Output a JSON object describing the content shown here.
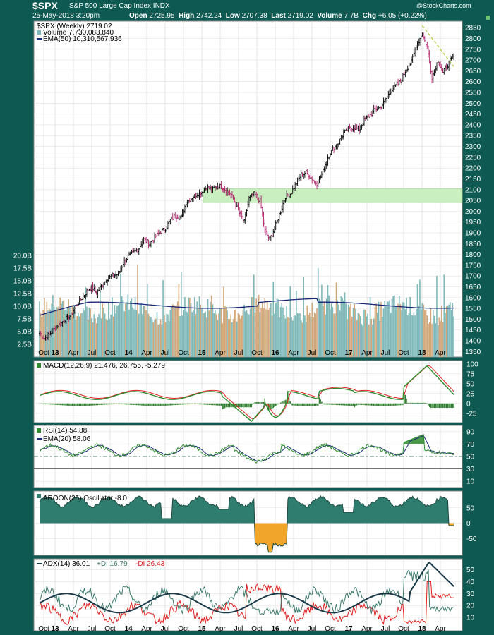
{
  "header": {
    "symbol": "$SPX",
    "name": "S&P 500 Large Cap Index  INDX",
    "date": "25-May-2018 3:20pm",
    "open_label": "Open",
    "open": "2725.95",
    "high_label": "High",
    "high": "2742.24",
    "low_label": "Low",
    "low": "2707.38",
    "last_label": "Last",
    "last": "2719.02",
    "volume_label": "Volume",
    "volume": "7.7B",
    "chg_label": "Chg",
    "chg": "+6.05 (+0.22%)",
    "watermark": "@StockCharts.com"
  },
  "colors": {
    "background": "#0e5a52",
    "panel": "#ffffff",
    "grid": "#c8c8c8",
    "up_candle": "#000000",
    "down_candle": "#b0206a",
    "volume_up": "#7fb8b8",
    "volume_down": "#d2a87a",
    "ema_line": "#1a2a7a",
    "support_zone": "#c9efc1",
    "trend_line": "#b0d040",
    "macd_line": "#2e8b2e",
    "signal_line": "#e02020",
    "histogram": "#2e7d2e",
    "rsi_line": "#2e8b2e",
    "aroon_pos": "#2e7d6e",
    "aroon_neg": "#f2a52b",
    "adx_line": "#1a3a4a",
    "plus_di": "#3a7a6a",
    "minus_di": "#e02020"
  },
  "chart_data": [
    {
      "type": "candlestick",
      "title": "$SPX (Weekly) 2719.02",
      "legend": [
        "$SPX (Weekly) 2719.02",
        "Volume 7,730,083,840",
        "EMA(50) 10,310,567,936"
      ],
      "x_ticks": [
        "Oct",
        "13",
        "Apr",
        "Jul",
        "Oct",
        "14",
        "Apr",
        "Jul",
        "Oct",
        "15",
        "Apr",
        "Jul",
        "Oct",
        "16",
        "Apr",
        "Jul",
        "Oct",
        "17",
        "Apr",
        "Jul",
        "Oct",
        "18",
        "Apr"
      ],
      "y_ticks": [
        1350,
        1400,
        1450,
        1500,
        1550,
        1600,
        1650,
        1700,
        1750,
        1800,
        1850,
        1900,
        1950,
        2000,
        2050,
        2100,
        2150,
        2200,
        2250,
        2300,
        2350,
        2400,
        2450,
        2500,
        2550,
        2600,
        2650,
        2700,
        2750,
        2800,
        2850
      ],
      "ylim": [
        1325,
        2880
      ],
      "volume_ticks": [
        "2.5B",
        "5.0B",
        "7.5B",
        "10.0B",
        "12.5B",
        "15.0B",
        "17.5B",
        "20.0B"
      ],
      "support_zone": [
        2040,
        2105
      ],
      "close_path": [
        [
          0,
          1440
        ],
        [
          4,
          1410
        ],
        [
          8,
          1430
        ],
        [
          13,
          1460
        ],
        [
          17,
          1480
        ],
        [
          21,
          1500
        ],
        [
          26,
          1520
        ],
        [
          30,
          1560
        ],
        [
          34,
          1590
        ],
        [
          39,
          1630
        ],
        [
          43,
          1650
        ],
        [
          47,
          1620
        ],
        [
          52,
          1660
        ],
        [
          56,
          1690
        ],
        [
          60,
          1700
        ],
        [
          65,
          1710
        ],
        [
          69,
          1760
        ],
        [
          73,
          1790
        ],
        [
          78,
          1810
        ],
        [
          82,
          1830
        ],
        [
          86,
          1870
        ],
        [
          91,
          1850
        ],
        [
          95,
          1880
        ],
        [
          99,
          1900
        ],
        [
          104,
          1920
        ],
        [
          108,
          1960
        ],
        [
          112,
          1980
        ],
        [
          117,
          1970
        ],
        [
          121,
          2040
        ],
        [
          125,
          2060
        ],
        [
          130,
          2080
        ],
        [
          134,
          2090
        ],
        [
          138,
          2110
        ],
        [
          143,
          2100
        ],
        [
          147,
          2120
        ],
        [
          151,
          2110
        ],
        [
          156,
          2090
        ],
        [
          160,
          2060
        ],
        [
          164,
          2000
        ],
        [
          169,
          1950
        ],
        [
          173,
          2060
        ],
        [
          177,
          2080
        ],
        [
          182,
          2050
        ],
        [
          186,
          1910
        ],
        [
          190,
          1870
        ],
        [
          194,
          1920
        ],
        [
          199,
          2000
        ],
        [
          203,
          2070
        ],
        [
          207,
          2080
        ],
        [
          212,
          2130
        ],
        [
          216,
          2170
        ],
        [
          220,
          2180
        ],
        [
          225,
          2150
        ],
        [
          229,
          2130
        ],
        [
          233,
          2170
        ],
        [
          238,
          2250
        ],
        [
          242,
          2290
        ],
        [
          246,
          2310
        ],
        [
          251,
          2360
        ],
        [
          255,
          2380
        ],
        [
          259,
          2390
        ],
        [
          264,
          2380
        ],
        [
          268,
          2420
        ],
        [
          272,
          2440
        ],
        [
          277,
          2470
        ],
        [
          281,
          2480
        ],
        [
          285,
          2510
        ],
        [
          290,
          2560
        ],
        [
          294,
          2580
        ],
        [
          298,
          2600
        ],
        [
          303,
          2660
        ],
        [
          307,
          2690
        ],
        [
          311,
          2770
        ],
        [
          316,
          2820
        ],
        [
          320,
          2760
        ],
        [
          324,
          2620
        ],
        [
          329,
          2700
        ],
        [
          333,
          2640
        ],
        [
          337,
          2680
        ],
        [
          342,
          2720
        ]
      ]
    },
    {
      "type": "line",
      "title": "MACD(12,26,9) 21.476, 26.755, -5.279",
      "y_ticks": [
        100,
        75,
        50,
        25,
        0,
        -25
      ],
      "ylim": [
        -45,
        105
      ]
    },
    {
      "type": "line",
      "title": "RSI(14) 54.88",
      "legend": [
        "RSI(14) 54.88",
        "EMA(20) 58.06"
      ],
      "y_ticks": [
        90,
        70,
        50,
        30,
        10
      ],
      "ylim": [
        0,
        100
      ]
    },
    {
      "type": "area",
      "title": "AROON(25) Oscillator -8.0",
      "y_ticks": [
        50,
        0,
        -50
      ],
      "ylim": [
        -100,
        100
      ]
    },
    {
      "type": "line",
      "title": "ADX(14) 36.01 +DI 16.79 -DI 26.43",
      "legend": [
        "ADX(14) 36.01",
        "+DI 16.79",
        "-DI 26.43"
      ],
      "y_ticks": [
        50,
        40,
        30,
        20,
        10
      ],
      "ylim": [
        0,
        58
      ]
    }
  ]
}
